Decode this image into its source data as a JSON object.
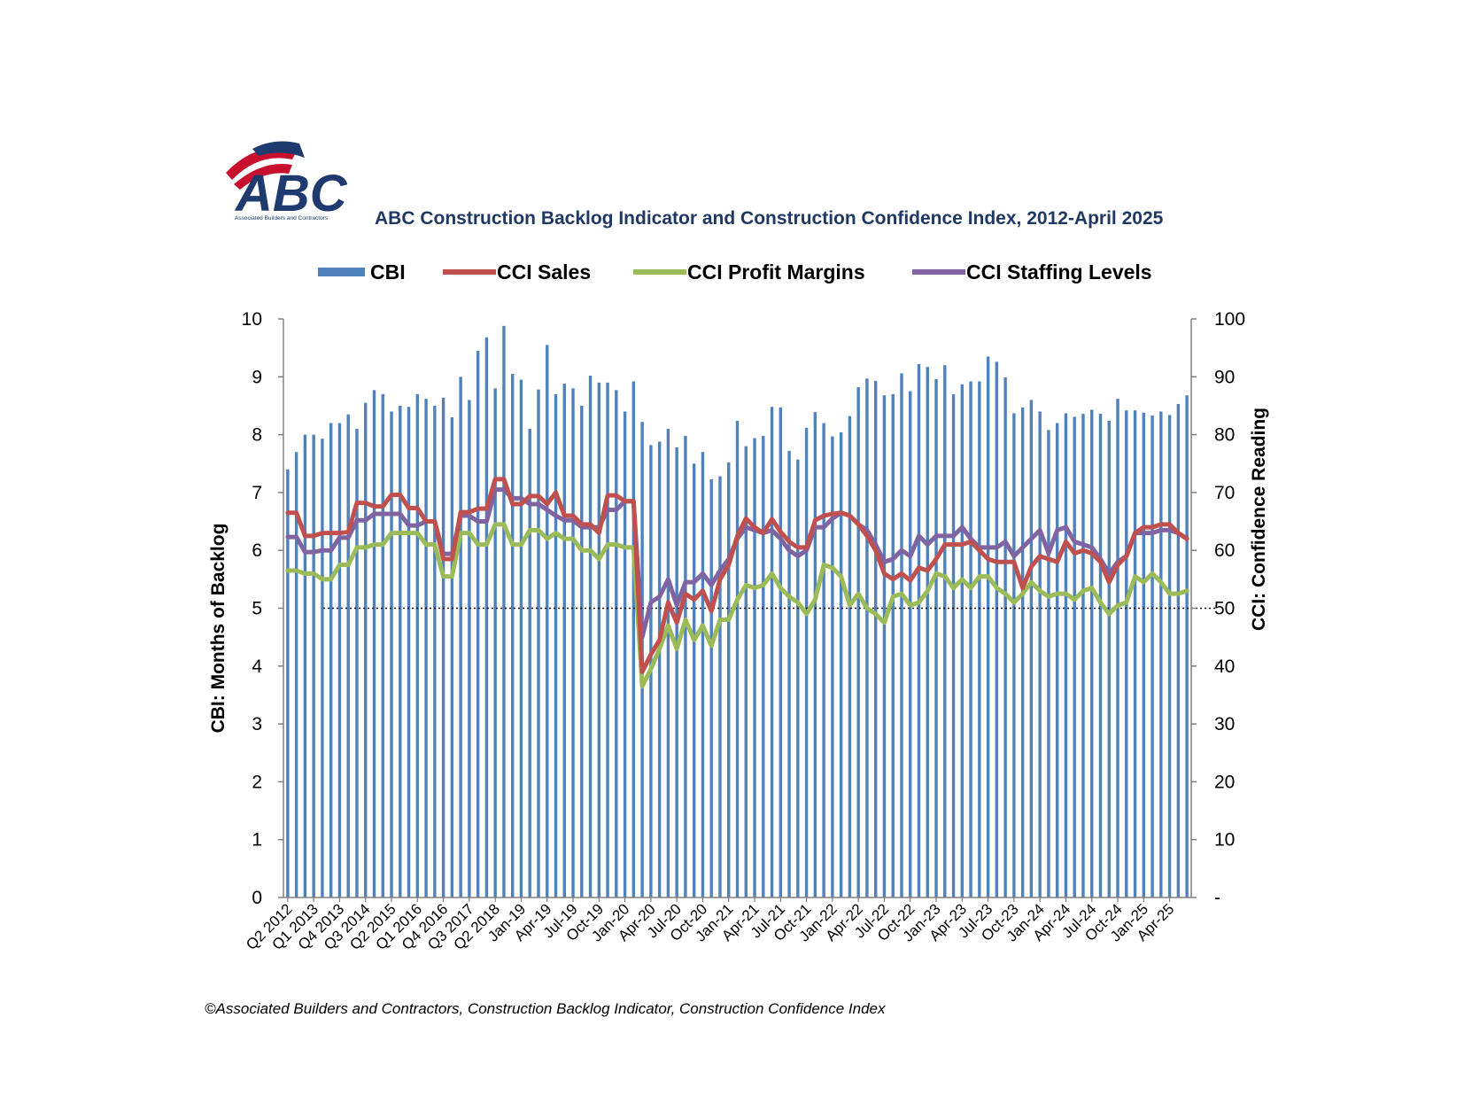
{
  "title": "ABC Construction Backlog Indicator and Construction Confidence Index, 2012-April 2025",
  "source": "©Associated Builders and Contractors, Construction Backlog Indicator, Construction Confidence Index",
  "logo": {
    "text": "ABC",
    "subtitle": "Associated Builders and Contractors"
  },
  "colors": {
    "cbi": "#4f81bd",
    "sales": "#c0504d",
    "profit": "#9bbb59",
    "staffing": "#8064a2",
    "title": "#1f3864",
    "logo_blue": "#1f3a6e",
    "logo_red": "#c8102e"
  },
  "chart_data": {
    "type": "bar",
    "title": "ABC Construction Backlog Indicator and Construction Confidence Index, 2012-April 2025",
    "ylabel_left": "CBI: Months of Backlog",
    "ylabel_right": "CCI: Confidence Reading",
    "ylim_left": [
      0,
      10
    ],
    "ylim_right": [
      0,
      100
    ],
    "yticks_left": [
      "0",
      "1",
      "2",
      "3",
      "4",
      "5",
      "6",
      "7",
      "8",
      "9",
      "10"
    ],
    "yticks_right": [
      "-",
      "10",
      "20",
      "30",
      "40",
      "50",
      "60",
      "70",
      "80",
      "90",
      "100"
    ],
    "reference_line_right": 50,
    "legend_position": "top",
    "x_tick_labels": [
      "Q2 2012",
      "Q1 2013",
      "Q4 2013",
      "Q3 2014",
      "Q2 2015",
      "Q1 2016",
      "Q4 2016",
      "Q3 2017",
      "Q2 2018",
      "Jan-19",
      "Apr-19",
      "Jul-19",
      "Oct-19",
      "Jan-20",
      "Apr-20",
      "Jul-20",
      "Oct-20",
      "Jan-21",
      "Apr-21",
      "Jul-21",
      "Oct-21",
      "Jan-22",
      "Apr-22",
      "Jul-22",
      "Oct-22",
      "Jan-23",
      "Apr-23",
      "Jul-23",
      "Oct-23",
      "Jan-24",
      "Apr-24",
      "Jul-24",
      "Oct-24",
      "Jan-25",
      "Apr-25"
    ],
    "series": [
      {
        "name": "CBI",
        "kind": "bar",
        "axis": "left",
        "values": [
          7.4,
          7.7,
          8.0,
          8.0,
          7.93,
          8.2,
          8.2,
          8.35,
          8.1,
          8.55,
          8.77,
          8.7,
          8.4,
          8.5,
          8.48,
          8.7,
          8.62,
          8.5,
          8.64,
          8.3,
          9.0,
          8.6,
          9.45,
          9.68,
          8.8,
          9.88,
          9.05,
          8.95,
          8.1,
          8.78,
          9.55,
          8.7,
          8.88,
          8.8,
          8.5,
          9.02,
          8.9,
          8.9,
          8.77,
          8.4,
          8.92,
          8.22,
          7.82,
          7.88,
          8.1,
          7.78,
          7.98,
          7.5,
          7.7,
          7.23,
          7.28,
          7.52,
          8.24,
          7.8,
          7.94,
          7.98,
          8.48,
          8.47,
          7.72,
          7.57,
          8.12,
          8.39,
          8.2,
          7.97,
          8.04,
          8.32,
          8.82,
          8.97,
          8.93,
          8.68,
          8.7,
          9.06,
          8.75,
          9.22,
          9.17,
          8.96,
          9.2,
          8.7,
          8.87,
          8.92,
          8.92,
          9.35,
          9.26,
          8.99,
          8.37,
          8.47,
          8.6,
          8.4,
          8.08,
          8.2,
          8.37,
          8.31,
          8.36,
          8.43,
          8.36,
          8.24,
          8.62,
          8.42,
          8.42,
          8.38,
          8.33,
          8.4,
          8.34,
          8.53,
          8.68
        ]
      },
      {
        "name": "CCI Sales",
        "kind": "line",
        "axis": "right",
        "values": [
          66.5,
          66.5,
          62.5,
          62.5,
          63,
          63,
          63,
          63.2,
          68.2,
          68.2,
          67.6,
          67.6,
          69.6,
          69.6,
          67.3,
          67.3,
          65,
          65,
          58.5,
          58.5,
          66.6,
          66.6,
          67.2,
          67.2,
          72.3,
          72.3,
          68,
          68,
          69.4,
          69.4,
          68,
          70,
          66,
          66,
          64.5,
          64.5,
          63,
          69.5,
          69.5,
          68.5,
          68.5,
          39,
          42,
          44.5,
          51,
          47.5,
          52.5,
          51.5,
          53,
          49.5,
          55,
          57.5,
          62.5,
          65.5,
          64,
          63,
          65.4,
          63.2,
          61.5,
          60.5,
          60.5,
          65.2,
          66,
          66.3,
          66.5,
          66,
          64.5,
          62.5,
          60,
          56,
          55,
          56,
          54.8,
          57,
          56.5,
          58.5,
          61,
          61,
          61,
          61.5,
          60,
          58.5,
          58,
          58,
          58,
          53.5,
          57.2,
          59,
          58.5,
          58,
          61.5,
          59.5,
          60,
          59.5,
          58,
          54.5,
          57.5,
          59,
          63,
          64,
          64,
          64.5,
          64.5,
          63,
          62
        ]
      },
      {
        "name": "CCI Profit Margins",
        "kind": "line",
        "axis": "right",
        "values": [
          56.5,
          56.5,
          56,
          56,
          55,
          55,
          57.5,
          57.5,
          60.5,
          60.5,
          61,
          61,
          63,
          63,
          63,
          63,
          61,
          61,
          55.5,
          55.5,
          63,
          63,
          61,
          61,
          64.5,
          64.5,
          61,
          61,
          63.5,
          63.5,
          62,
          63,
          62,
          62,
          60,
          60,
          58.5,
          61,
          61,
          60.5,
          60.5,
          36.5,
          39.5,
          43,
          47,
          43,
          48,
          44.5,
          47,
          43.5,
          48,
          48,
          51.5,
          54,
          53.5,
          54,
          56,
          53.5,
          52,
          51,
          49,
          51.5,
          57.5,
          57,
          55.5,
          50.5,
          52.5,
          50,
          49,
          47.5,
          52,
          52.5,
          50.5,
          51,
          53,
          56,
          55.5,
          53.5,
          55,
          53.5,
          55.5,
          55.5,
          53.5,
          52.5,
          51,
          52.5,
          54.5,
          53,
          52,
          52.5,
          52.5,
          51.5,
          53,
          53.5,
          51,
          49,
          50.5,
          51,
          55.5,
          54.5,
          56,
          54.5,
          52.5,
          52.5,
          53
        ]
      },
      {
        "name": "CCI Staffing Levels",
        "kind": "line",
        "axis": "right",
        "values": [
          62.3,
          62.3,
          59.7,
          59.7,
          60,
          60,
          62.2,
          62.2,
          65.2,
          65.2,
          66.3,
          66.3,
          66.3,
          66.3,
          64.3,
          64.3,
          65,
          65,
          59.4,
          59.4,
          66,
          66,
          65,
          65,
          70.5,
          70.5,
          69,
          69,
          68,
          68,
          67,
          66,
          65.2,
          65.2,
          64,
          64,
          64,
          67,
          67,
          68.5,
          68.5,
          45,
          51,
          52,
          55,
          50.5,
          54.5,
          54.5,
          56,
          54,
          56.5,
          58.5,
          62,
          64,
          63.5,
          63,
          63.5,
          62,
          60,
          59,
          60,
          64,
          64,
          65.5,
          66.5,
          66,
          64.5,
          63.5,
          61,
          58,
          58.5,
          60,
          59,
          62.5,
          61,
          62.5,
          62.5,
          62.5,
          64,
          62,
          60.5,
          60.5,
          60.5,
          61.5,
          59,
          60.5,
          62,
          63.5,
          59.5,
          63.5,
          64,
          61.5,
          61,
          60.5,
          58.5,
          56,
          58,
          59,
          63,
          63,
          63,
          63.5,
          63.5,
          63,
          62
        ]
      }
    ]
  }
}
